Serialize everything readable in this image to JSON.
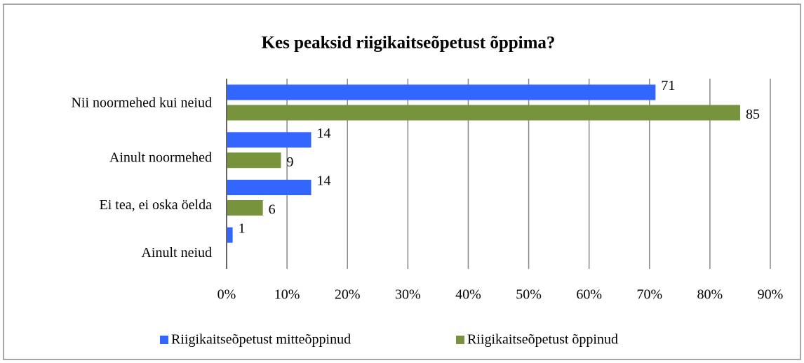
{
  "chart_data": {
    "type": "barh",
    "title": "Kes peaksid riigikaitseõpetust õppima?",
    "categories": [
      "Nii noormehed kui neiud",
      "Ainult noormehed",
      "Ei tea, ei oska öelda",
      "Ainult neiud"
    ],
    "series": [
      {
        "name": "Riigikaitseõpetust mitteõppinud",
        "color": "#3366ff",
        "values": [
          71,
          14,
          14,
          1
        ]
      },
      {
        "name": "Riigikaitseõpetust õppinud",
        "color": "#77933c",
        "values": [
          85,
          9,
          6,
          null
        ]
      }
    ],
    "xlim": [
      0,
      90
    ],
    "xticks": [
      {
        "value": 0,
        "label": "0%"
      },
      {
        "value": 10,
        "label": "10%"
      },
      {
        "value": 20,
        "label": "20%"
      },
      {
        "value": 30,
        "label": "30%"
      },
      {
        "value": 40,
        "label": "40%"
      },
      {
        "value": 50,
        "label": "50%"
      },
      {
        "value": 60,
        "label": "60%"
      },
      {
        "value": 70,
        "label": "70%"
      },
      {
        "value": 80,
        "label": "80%"
      },
      {
        "value": 90,
        "label": "90%"
      }
    ],
    "grid": true,
    "legend": "bottom"
  }
}
